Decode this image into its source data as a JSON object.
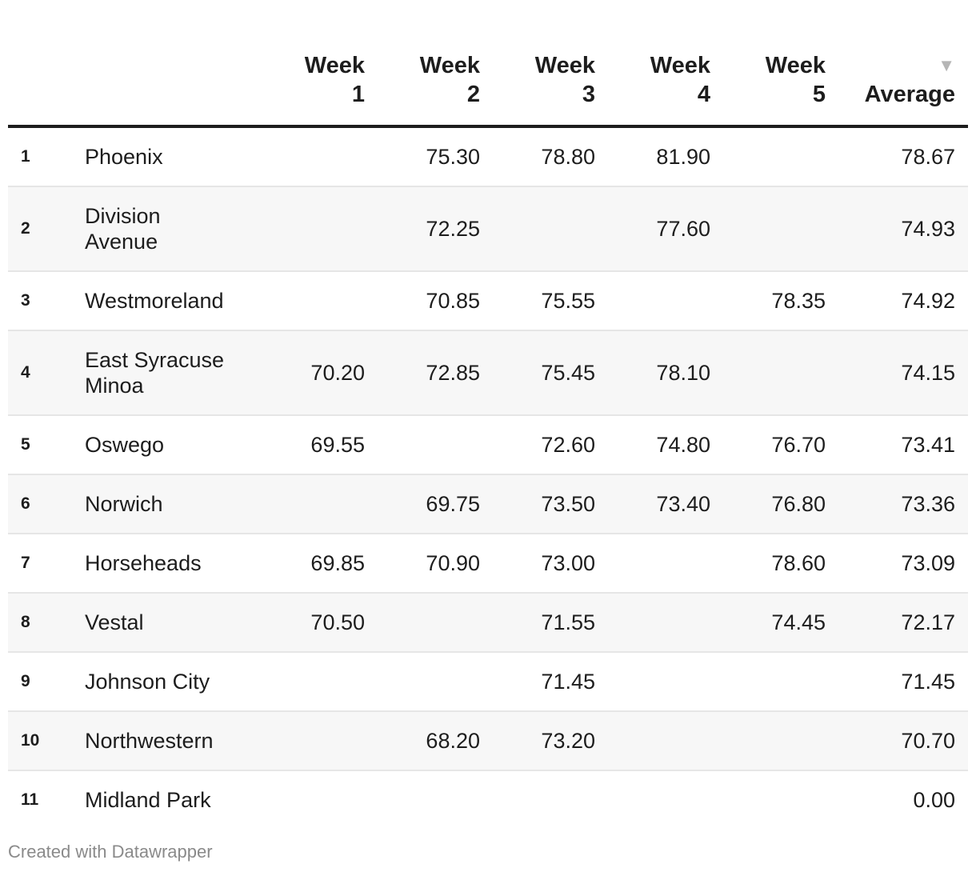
{
  "table": {
    "headers": {
      "weeks": [
        {
          "line1": "Week",
          "line2": "1"
        },
        {
          "line1": "Week",
          "line2": "2"
        },
        {
          "line1": "Week",
          "line2": "3"
        },
        {
          "line1": "Week",
          "line2": "4"
        },
        {
          "line1": "Week",
          "line2": "5"
        }
      ],
      "average": "Average",
      "sort_icon": "▼"
    },
    "rows": [
      {
        "rank": "1",
        "name": "Phoenix",
        "w1": "",
        "w2": "75.30",
        "w3": "78.80",
        "w4": "81.90",
        "w5": "",
        "avg": "78.67"
      },
      {
        "rank": "2",
        "name": "Division Avenue",
        "w1": "",
        "w2": "72.25",
        "w3": "",
        "w4": "77.60",
        "w5": "",
        "avg": "74.93"
      },
      {
        "rank": "3",
        "name": "Westmoreland",
        "w1": "",
        "w2": "70.85",
        "w3": "75.55",
        "w4": "",
        "w5": "78.35",
        "avg": "74.92"
      },
      {
        "rank": "4",
        "name": "East Syracuse Minoa",
        "w1": "70.20",
        "w2": "72.85",
        "w3": "75.45",
        "w4": "78.10",
        "w5": "",
        "avg": "74.15"
      },
      {
        "rank": "5",
        "name": "Oswego",
        "w1": "69.55",
        "w2": "",
        "w3": "72.60",
        "w4": "74.80",
        "w5": "76.70",
        "avg": "73.41"
      },
      {
        "rank": "6",
        "name": "Norwich",
        "w1": "",
        "w2": "69.75",
        "w3": "73.50",
        "w4": "73.40",
        "w5": "76.80",
        "avg": "73.36"
      },
      {
        "rank": "7",
        "name": "Horseheads",
        "w1": "69.85",
        "w2": "70.90",
        "w3": "73.00",
        "w4": "",
        "w5": "78.60",
        "avg": "73.09"
      },
      {
        "rank": "8",
        "name": "Vestal",
        "w1": "70.50",
        "w2": "",
        "w3": "71.55",
        "w4": "",
        "w5": "74.45",
        "avg": "72.17"
      },
      {
        "rank": "9",
        "name": "Johnson City",
        "w1": "",
        "w2": "",
        "w3": "71.45",
        "w4": "",
        "w5": "",
        "avg": "71.45"
      },
      {
        "rank": "10",
        "name": "Northwestern",
        "w1": "",
        "w2": "68.20",
        "w3": "73.20",
        "w4": "",
        "w5": "",
        "avg": "70.70"
      },
      {
        "rank": "11",
        "name": "Midland Park",
        "w1": "",
        "w2": "",
        "w3": "",
        "w4": "",
        "w5": "",
        "avg": "0.00"
      }
    ]
  },
  "footer": {
    "credit": "Created with Datawrapper"
  }
}
